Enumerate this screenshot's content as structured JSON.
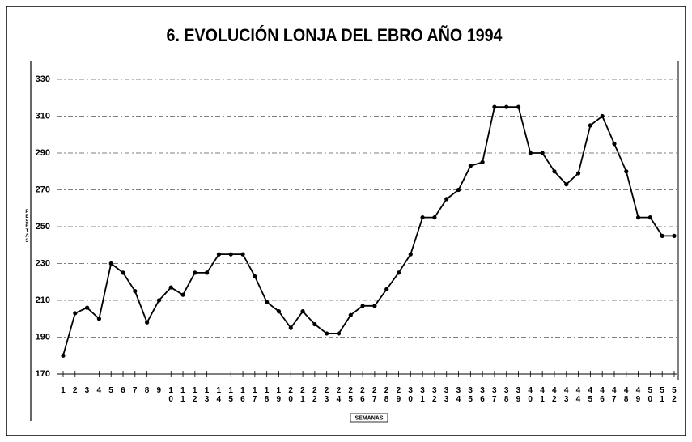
{
  "chart_data": {
    "type": "line",
    "title": "6. EVOLUCIÓN LONJA DEL EBRO AÑO 1994",
    "y_label": "PESETAS",
    "x_label": "SEMANAS",
    "categories": [
      "1",
      "2",
      "3",
      "4",
      "5",
      "6",
      "7",
      "8",
      "9",
      "10",
      "11",
      "12",
      "13",
      "14",
      "15",
      "16",
      "17",
      "18",
      "19",
      "20",
      "21",
      "22",
      "23",
      "24",
      "25",
      "26",
      "27",
      "28",
      "29",
      "30",
      "31",
      "32",
      "33",
      "34",
      "35",
      "36",
      "37",
      "38",
      "39",
      "40",
      "41",
      "42",
      "43",
      "44",
      "45",
      "46",
      "47",
      "48",
      "49",
      "50",
      "51",
      "52"
    ],
    "values": [
      180,
      203,
      206,
      200,
      230,
      225,
      215,
      198,
      210,
      217,
      213,
      225,
      225,
      235,
      235,
      235,
      223,
      209,
      204,
      195,
      204,
      197,
      192,
      192,
      202,
      207,
      207,
      216,
      225,
      235,
      255,
      255,
      265,
      270,
      283,
      285,
      315,
      315,
      315,
      290,
      290,
      280,
      273,
      279,
      305,
      310,
      295,
      280,
      255,
      255,
      245,
      245
    ],
    "color": "#000000",
    "ylim": [
      170,
      330
    ],
    "yticks": [
      170,
      190,
      210,
      230,
      250,
      270,
      290,
      310,
      330
    ],
    "grid": true
  }
}
